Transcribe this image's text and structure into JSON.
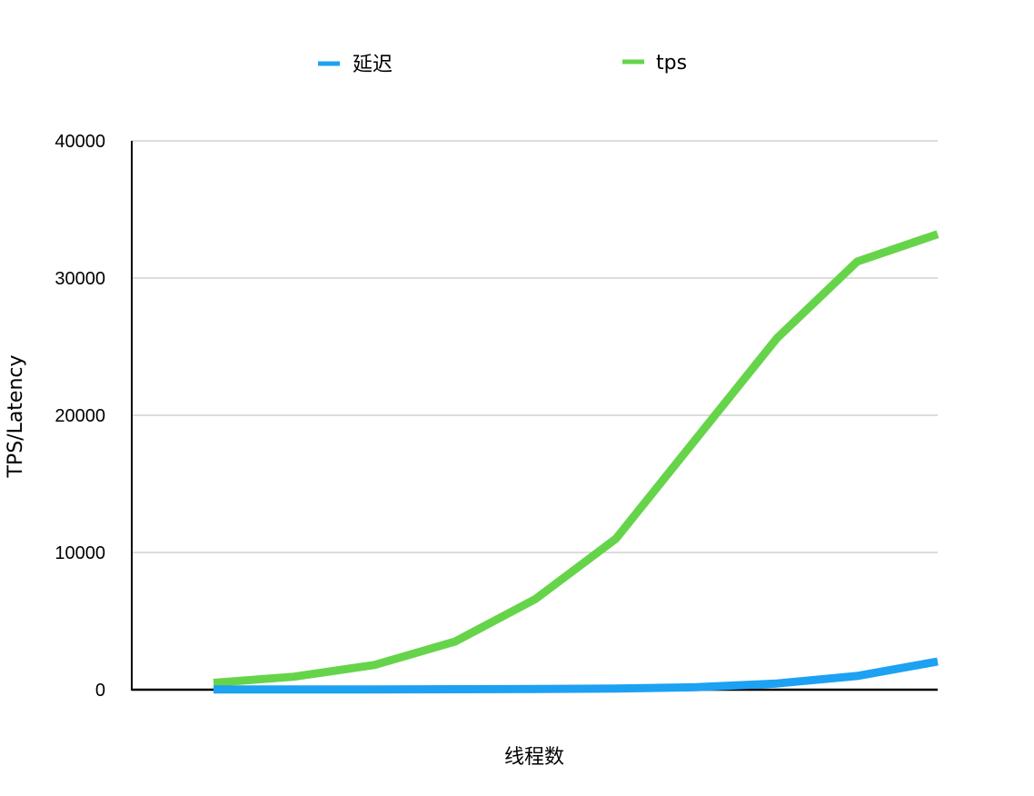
{
  "chart_data": {
    "type": "line",
    "title": "",
    "xlabel": "线程数",
    "ylabel": "TPS/Latency",
    "ylim": [
      0,
      40000
    ],
    "yticks": [
      0,
      10000,
      20000,
      30000,
      40000
    ],
    "grid": true,
    "legend_position": "top",
    "series": [
      {
        "name": "延迟",
        "color": "#1da1f2",
        "values": [
          10,
          15,
          20,
          30,
          45,
          80,
          180,
          450,
          1000,
          2050
        ]
      },
      {
        "name": "tps",
        "color": "#66d44a",
        "values": [
          500,
          950,
          1800,
          3500,
          6600,
          11000,
          18300,
          25600,
          31200,
          33200
        ]
      }
    ]
  }
}
